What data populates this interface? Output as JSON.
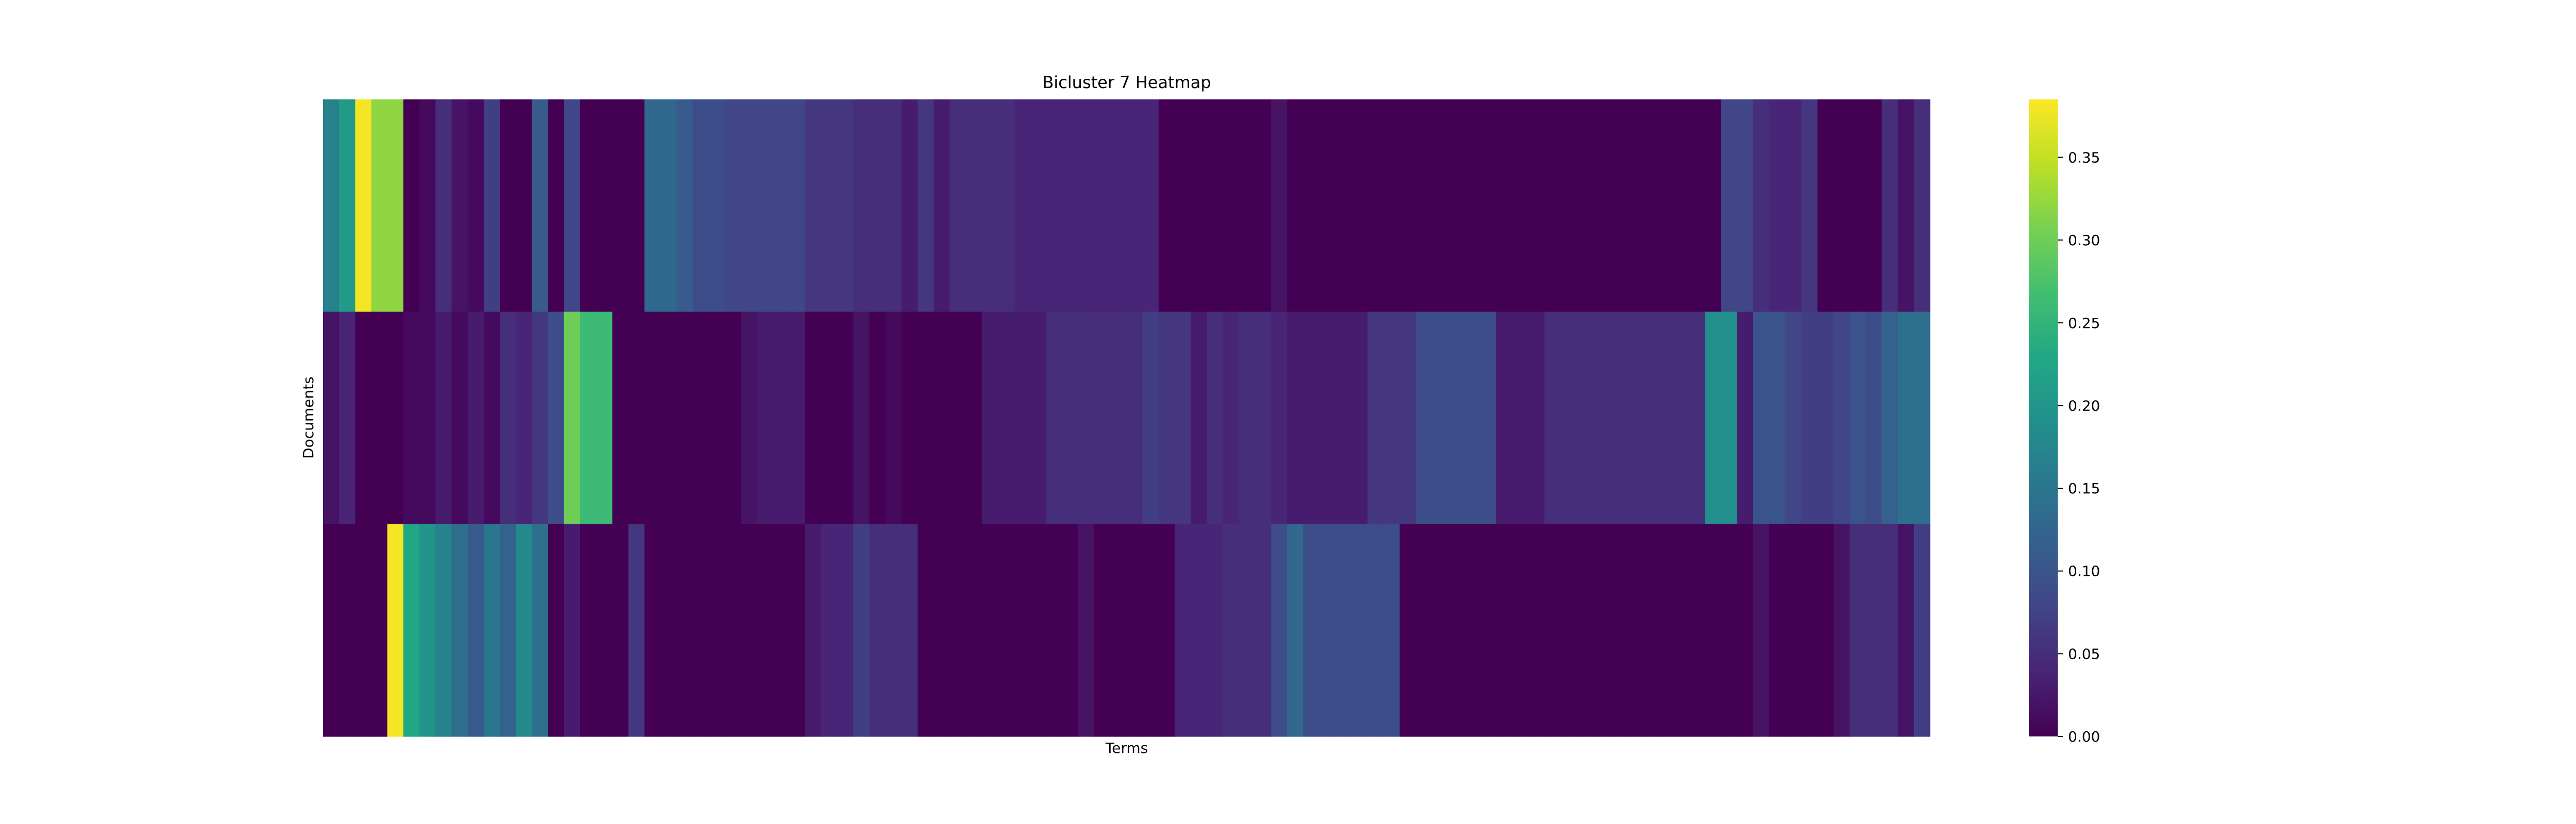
{
  "chart_data": {
    "type": "heatmap",
    "title": "Bicluster 7 Heatmap",
    "xlabel": "Terms",
    "ylabel": "Documents",
    "rows": 3,
    "columns": 100,
    "colormap": "viridis",
    "colorbar": {
      "min": 0.0,
      "max": 0.385,
      "ticks": [
        0.0,
        0.05,
        0.1,
        0.15,
        0.2,
        0.25,
        0.3,
        0.35
      ],
      "tick_labels": [
        "0.00",
        "0.05",
        "0.10",
        "0.15",
        "0.20",
        "0.25",
        "0.30",
        "0.35"
      ]
    },
    "values": [
      [
        0.17,
        0.21,
        0.38,
        0.32,
        0.32,
        0.0,
        0.01,
        0.05,
        0.02,
        0.01,
        0.07,
        0.0,
        0.0,
        0.11,
        0.0,
        0.08,
        0.0,
        0.0,
        0.0,
        0.0,
        0.13,
        0.13,
        0.11,
        0.09,
        0.09,
        0.08,
        0.08,
        0.08,
        0.08,
        0.08,
        0.06,
        0.06,
        0.06,
        0.05,
        0.05,
        0.05,
        0.03,
        0.06,
        0.03,
        0.05,
        0.05,
        0.05,
        0.05,
        0.04,
        0.04,
        0.04,
        0.04,
        0.04,
        0.04,
        0.04,
        0.04,
        0.04,
        0.0,
        0.0,
        0.0,
        0.0,
        0.0,
        0.0,
        0.0,
        0.02,
        0.0,
        0.0,
        0.0,
        0.0,
        0.0,
        0.0,
        0.0,
        0.0,
        0.0,
        0.0,
        0.0,
        0.0,
        0.0,
        0.0,
        0.0,
        0.0,
        0.0,
        0.0,
        0.0,
        0.0,
        0.0,
        0.0,
        0.0,
        0.0,
        0.0,
        0.0,
        0.0,
        0.08,
        0.08,
        0.05,
        0.04,
        0.04,
        0.06,
        0.0,
        0.0,
        0.0,
        0.0,
        0.05,
        0.02,
        0.05
      ],
      [
        0.02,
        0.04,
        0.0,
        0.0,
        0.0,
        0.01,
        0.01,
        0.03,
        0.01,
        0.03,
        0.01,
        0.05,
        0.04,
        0.06,
        0.09,
        0.3,
        0.26,
        0.26,
        0.0,
        0.0,
        0.0,
        0.0,
        0.0,
        0.0,
        0.0,
        0.0,
        0.02,
        0.03,
        0.03,
        0.03,
        0.0,
        0.0,
        0.0,
        0.02,
        0.0,
        0.01,
        0.0,
        0.0,
        0.0,
        0.0,
        0.0,
        0.03,
        0.03,
        0.03,
        0.03,
        0.05,
        0.05,
        0.05,
        0.05,
        0.05,
        0.05,
        0.07,
        0.06,
        0.06,
        0.03,
        0.05,
        0.04,
        0.05,
        0.05,
        0.04,
        0.03,
        0.03,
        0.03,
        0.03,
        0.03,
        0.06,
        0.06,
        0.06,
        0.09,
        0.09,
        0.09,
        0.09,
        0.09,
        0.03,
        0.03,
        0.03,
        0.05,
        0.05,
        0.05,
        0.05,
        0.05,
        0.05,
        0.05,
        0.05,
        0.05,
        0.05,
        0.19,
        0.19,
        0.03,
        0.1,
        0.1,
        0.08,
        0.07,
        0.07,
        0.08,
        0.1,
        0.09,
        0.12,
        0.14,
        0.14
      ],
      [
        0.0,
        0.0,
        0.0,
        0.0,
        0.38,
        0.23,
        0.2,
        0.17,
        0.14,
        0.11,
        0.15,
        0.12,
        0.18,
        0.14,
        0.0,
        0.03,
        0.0,
        0.0,
        0.0,
        0.06,
        0.0,
        0.0,
        0.0,
        0.0,
        0.0,
        0.0,
        0.0,
        0.0,
        0.0,
        0.0,
        0.03,
        0.04,
        0.04,
        0.07,
        0.05,
        0.05,
        0.05,
        0.0,
        0.0,
        0.0,
        0.0,
        0.0,
        0.0,
        0.0,
        0.0,
        0.0,
        0.0,
        0.02,
        0.0,
        0.0,
        0.0,
        0.0,
        0.0,
        0.04,
        0.04,
        0.04,
        0.05,
        0.05,
        0.05,
        0.09,
        0.13,
        0.09,
        0.09,
        0.09,
        0.09,
        0.09,
        0.09,
        0.0,
        0.0,
        0.0,
        0.0,
        0.0,
        0.0,
        0.0,
        0.0,
        0.0,
        0.0,
        0.0,
        0.0,
        0.0,
        0.0,
        0.0,
        0.0,
        0.0,
        0.0,
        0.0,
        0.0,
        0.0,
        0.0,
        0.02,
        0.0,
        0.0,
        0.0,
        0.0,
        0.02,
        0.05,
        0.05,
        0.05,
        0.02,
        0.07
      ]
    ]
  }
}
